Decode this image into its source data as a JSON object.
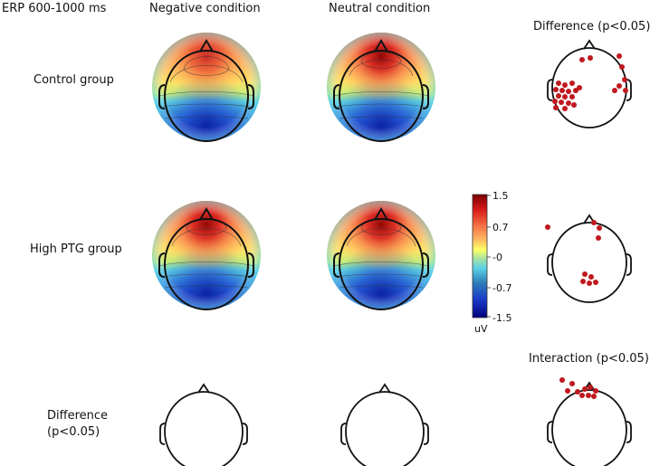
{
  "figure": {
    "title": "ERP 600-1000 ms",
    "columns": {
      "negative": "Negative condition",
      "neutral": "Neutral condition",
      "difference": "Difference (p<0.05)"
    },
    "rows": {
      "control": "Control group",
      "high_ptg": "High PTG group",
      "difference_line1": "Difference",
      "difference_line2": "(p<0.05)"
    },
    "interaction": "Interaction (p<0.05)",
    "colorbar": {
      "ticks": [
        "1.5",
        "0.7",
        "-0",
        "-0.7",
        "-1.5"
      ],
      "tick_values": [
        1.5,
        0.7,
        0,
        -0.7,
        -1.5
      ],
      "unit": "uV",
      "colors": [
        "#7a0000",
        "#d7191c",
        "#f46d43",
        "#fdae61",
        "#ffff66",
        "#a6e3a1",
        "#5ad1e6",
        "#2c7bb6",
        "#1b3cc8",
        "#00007a"
      ]
    },
    "marker_color": "#c0181e",
    "significant_electrodes": {
      "control_difference": 25,
      "high_ptg_difference": 9,
      "interaction": 10
    }
  }
}
